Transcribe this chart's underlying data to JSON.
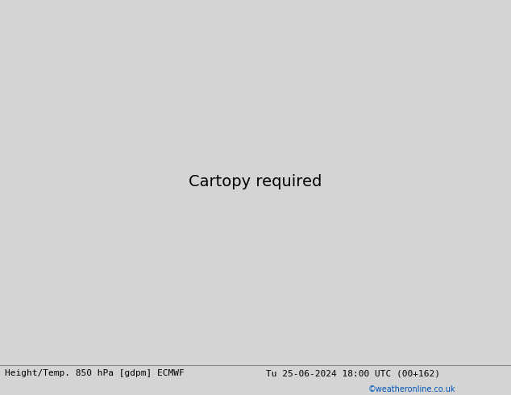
{
  "title_left": "Height/Temp. 850 hPa [gdpm] ECMWF",
  "title_right": "Tu 25-06-2024 18:00 UTC (00+162)",
  "copyright": "©weatheronline.co.uk",
  "bg_color": "#d4d4d4",
  "land_color": "#c8e8b0",
  "border_color": "#888888",
  "ocean_color": "#d4d4d4",
  "red_color": "#dd0000",
  "orange_color": "#ff8800",
  "green_color": "#88cc00",
  "cyan_color": "#00ccaa",
  "blue_color": "#3399ff",
  "black_lw": 2.2,
  "dashed_lw": 1.8
}
